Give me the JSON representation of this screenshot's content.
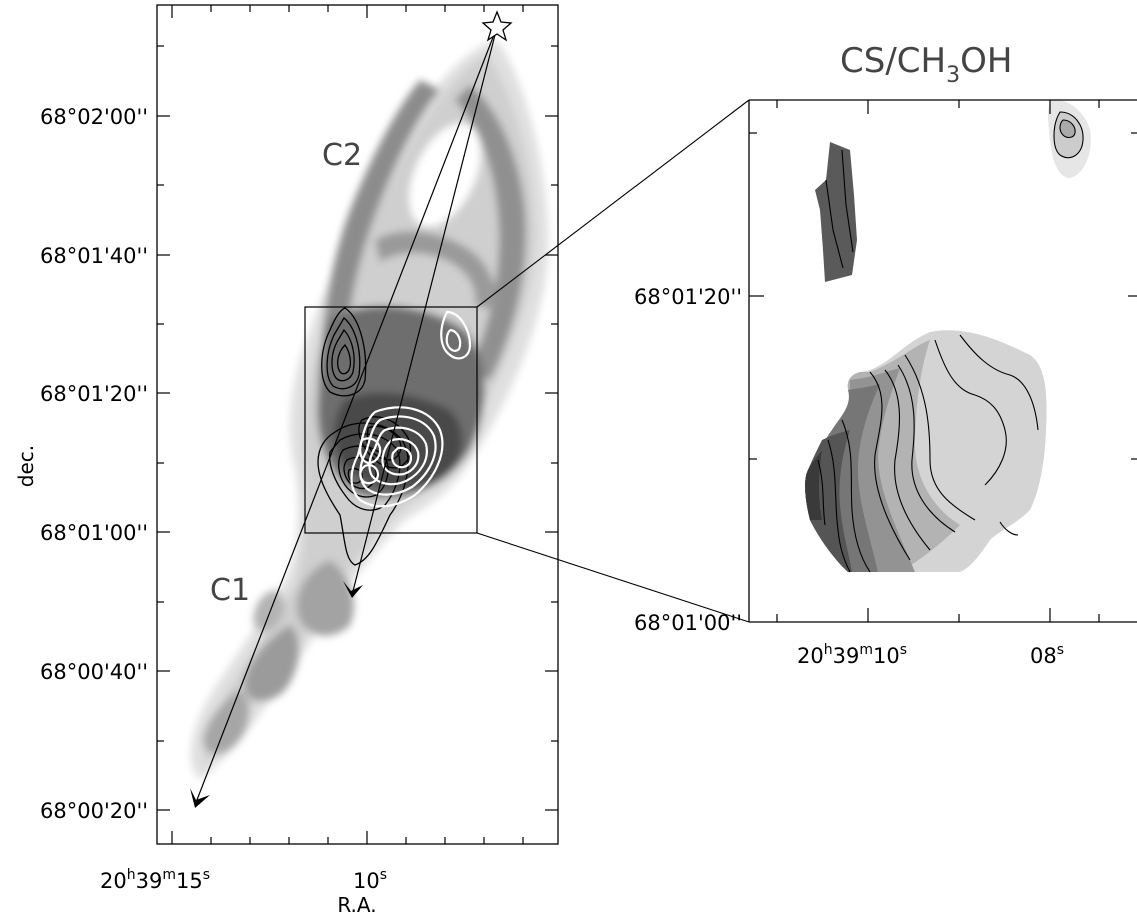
{
  "left_panel": {
    "dec_ticks": [
      "68°02'00''",
      "68°01'40''",
      "68°01'20''",
      "68°01'00''",
      "68°00'40''",
      "68°00'20''"
    ],
    "ra_tick_major": {
      "h": "20",
      "h_unit": "h",
      "m": "39",
      "m_unit": "m",
      "s": "15",
      "s_unit": "s"
    },
    "ra_tick_minor": {
      "s": "10",
      "s_unit": "s"
    },
    "xlabel": "R.A.",
    "ylabel": "dec.",
    "region_c1": "C1",
    "region_c2": "C2"
  },
  "right_panel": {
    "title_main": "CS/CH",
    "title_sub": "3",
    "title_end": "OH",
    "dec_ticks": [
      "68°01'20''",
      "68°01'00''"
    ],
    "ra_tick_major": {
      "h": "20",
      "h_unit": "h",
      "m": "39",
      "m_unit": "m",
      "s": "10",
      "s_unit": "s"
    },
    "ra_tick_minor": {
      "s": "08",
      "s_unit": "s"
    }
  }
}
